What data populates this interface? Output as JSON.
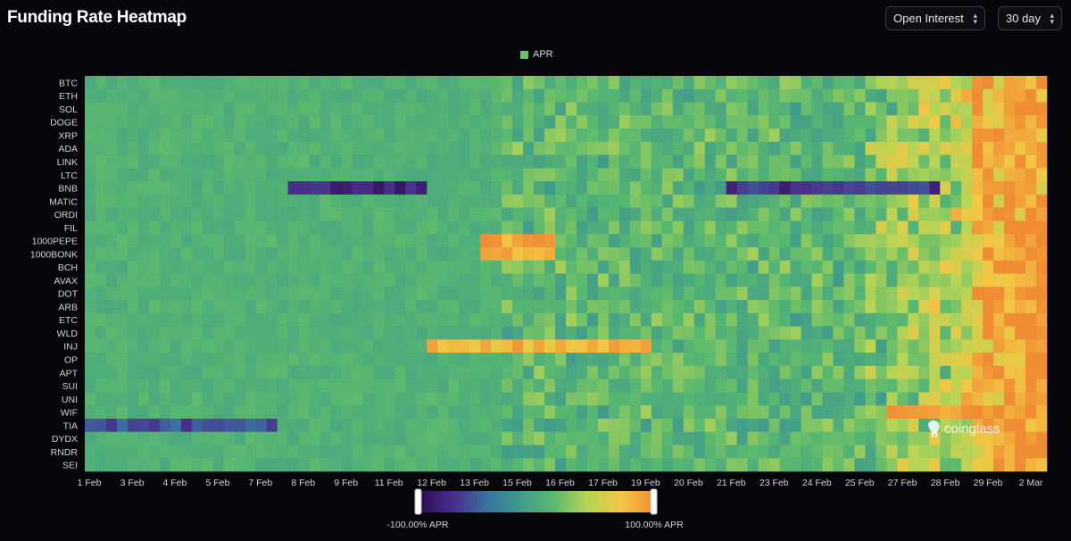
{
  "header": {
    "title": "Funding Rate Heatmap"
  },
  "controls": {
    "metric": {
      "value": "Open Interest"
    },
    "range": {
      "value": "30 day"
    }
  },
  "watermark": "coinglass",
  "scale": {
    "min_label": "-100.00% APR",
    "max_label": "100.00% APR",
    "stops": [
      "#2a0b4e",
      "#4a2a8a",
      "#3b6fa0",
      "#3f9a8c",
      "#58b86f",
      "#b4d456",
      "#f2c744",
      "#f08c34"
    ]
  },
  "chart_data": {
    "type": "heatmap",
    "legend": [
      "APR"
    ],
    "value_range": [
      -100,
      100
    ],
    "y_categories": [
      "BTC",
      "ETH",
      "SOL",
      "DOGE",
      "XRP",
      "ADA",
      "LINK",
      "LTC",
      "BNB",
      "MATIC",
      "ORDI",
      "FIL",
      "1000PEPE",
      "1000BONK",
      "BCH",
      "AVAX",
      "DOT",
      "ARB",
      "ETC",
      "WLD",
      "INJ",
      "OP",
      "APT",
      "SUI",
      "UNI",
      "WIF",
      "TIA",
      "DYDX",
      "RNDR",
      "SEI"
    ],
    "x_ticks": [
      "1 Feb",
      "3 Feb",
      "4 Feb",
      "5 Feb",
      "7 Feb",
      "8 Feb",
      "9 Feb",
      "11 Feb",
      "12 Feb",
      "13 Feb",
      "15 Feb",
      "16 Feb",
      "17 Feb",
      "19 Feb",
      "20 Feb",
      "21 Feb",
      "23 Feb",
      "24 Feb",
      "25 Feb",
      "27 Feb",
      "28 Feb",
      "29 Feb",
      "2 Mar"
    ],
    "columns": 90,
    "period_labels": {
      "start": "1 Feb",
      "end": "2 Mar"
    },
    "bands": [
      {
        "row": "BNB",
        "from_col": 19,
        "to_col": 31,
        "value": -80
      },
      {
        "row": "BNB",
        "from_col": 60,
        "to_col": 79,
        "value": -70
      },
      {
        "row": "TIA",
        "from_col": 0,
        "to_col": 17,
        "value": -55
      },
      {
        "row": "1000PEPE",
        "from_col": 37,
        "to_col": 43,
        "value": 85
      },
      {
        "row": "1000BONK",
        "from_col": 37,
        "to_col": 43,
        "value": 85
      },
      {
        "row": "INJ",
        "from_col": 32,
        "to_col": 52,
        "value": 80
      },
      {
        "row": "WIF",
        "from_col": 75,
        "to_col": 89,
        "value": 95
      }
    ],
    "trend": "funding rates near neutral through mid-February, turning strongly positive (orange) for most assets from ~27 Feb to 2 Mar"
  }
}
